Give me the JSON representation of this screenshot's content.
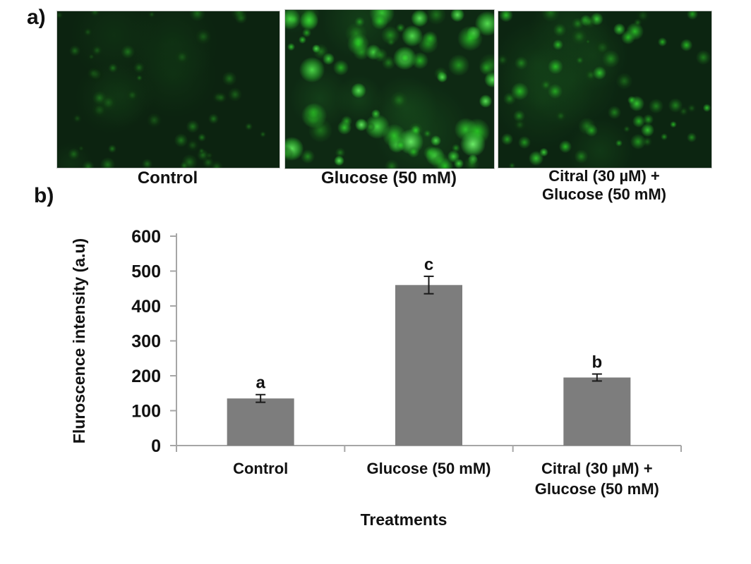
{
  "figure": {
    "panel_a_tag": "a)",
    "panel_b_tag": "b)"
  },
  "micrographs": {
    "panels": [
      {
        "label": "Control",
        "cell_density": "low",
        "background_color": "#0c2310",
        "cell_count": 48,
        "brightness_min": 0.1,
        "brightness_max": 0.38,
        "radius_min": 3,
        "radius_max": 9,
        "seed": 7
      },
      {
        "label": "Glucose (50 mM)",
        "cell_density": "high",
        "background_color": "#0e2913",
        "cell_count": 85,
        "brightness_min": 0.3,
        "brightness_max": 1.0,
        "radius_min": 4,
        "radius_max": 14,
        "seed": 13
      },
      {
        "label": "Citral (30 µM) +\nGlucose (50 mM)",
        "cell_density": "medium",
        "background_color": "#0c2511",
        "cell_count": 62,
        "brightness_min": 0.18,
        "brightness_max": 0.78,
        "radius_min": 3,
        "radius_max": 10,
        "seed": 21
      }
    ]
  },
  "chart_data": {
    "type": "bar",
    "title": "",
    "categories": [
      "Control",
      "Glucose (50 mM)",
      "Citral (30 µM) +\nGlucose (50 mM)"
    ],
    "values": [
      135,
      460,
      195
    ],
    "error_bars": [
      11,
      25,
      10
    ],
    "significance_letters": [
      "a",
      "c",
      "b"
    ],
    "ylabel": "Fluroscence intensity (a.u)",
    "xlabel": "Treatments",
    "ylim": [
      0,
      600
    ],
    "yticks": [
      0,
      100,
      200,
      300,
      400,
      500,
      600
    ],
    "grid": false,
    "legend_position": "none",
    "bar_color": "#7d7d7d",
    "axis_color": "#a6a6a6",
    "text_color": "#111111"
  }
}
